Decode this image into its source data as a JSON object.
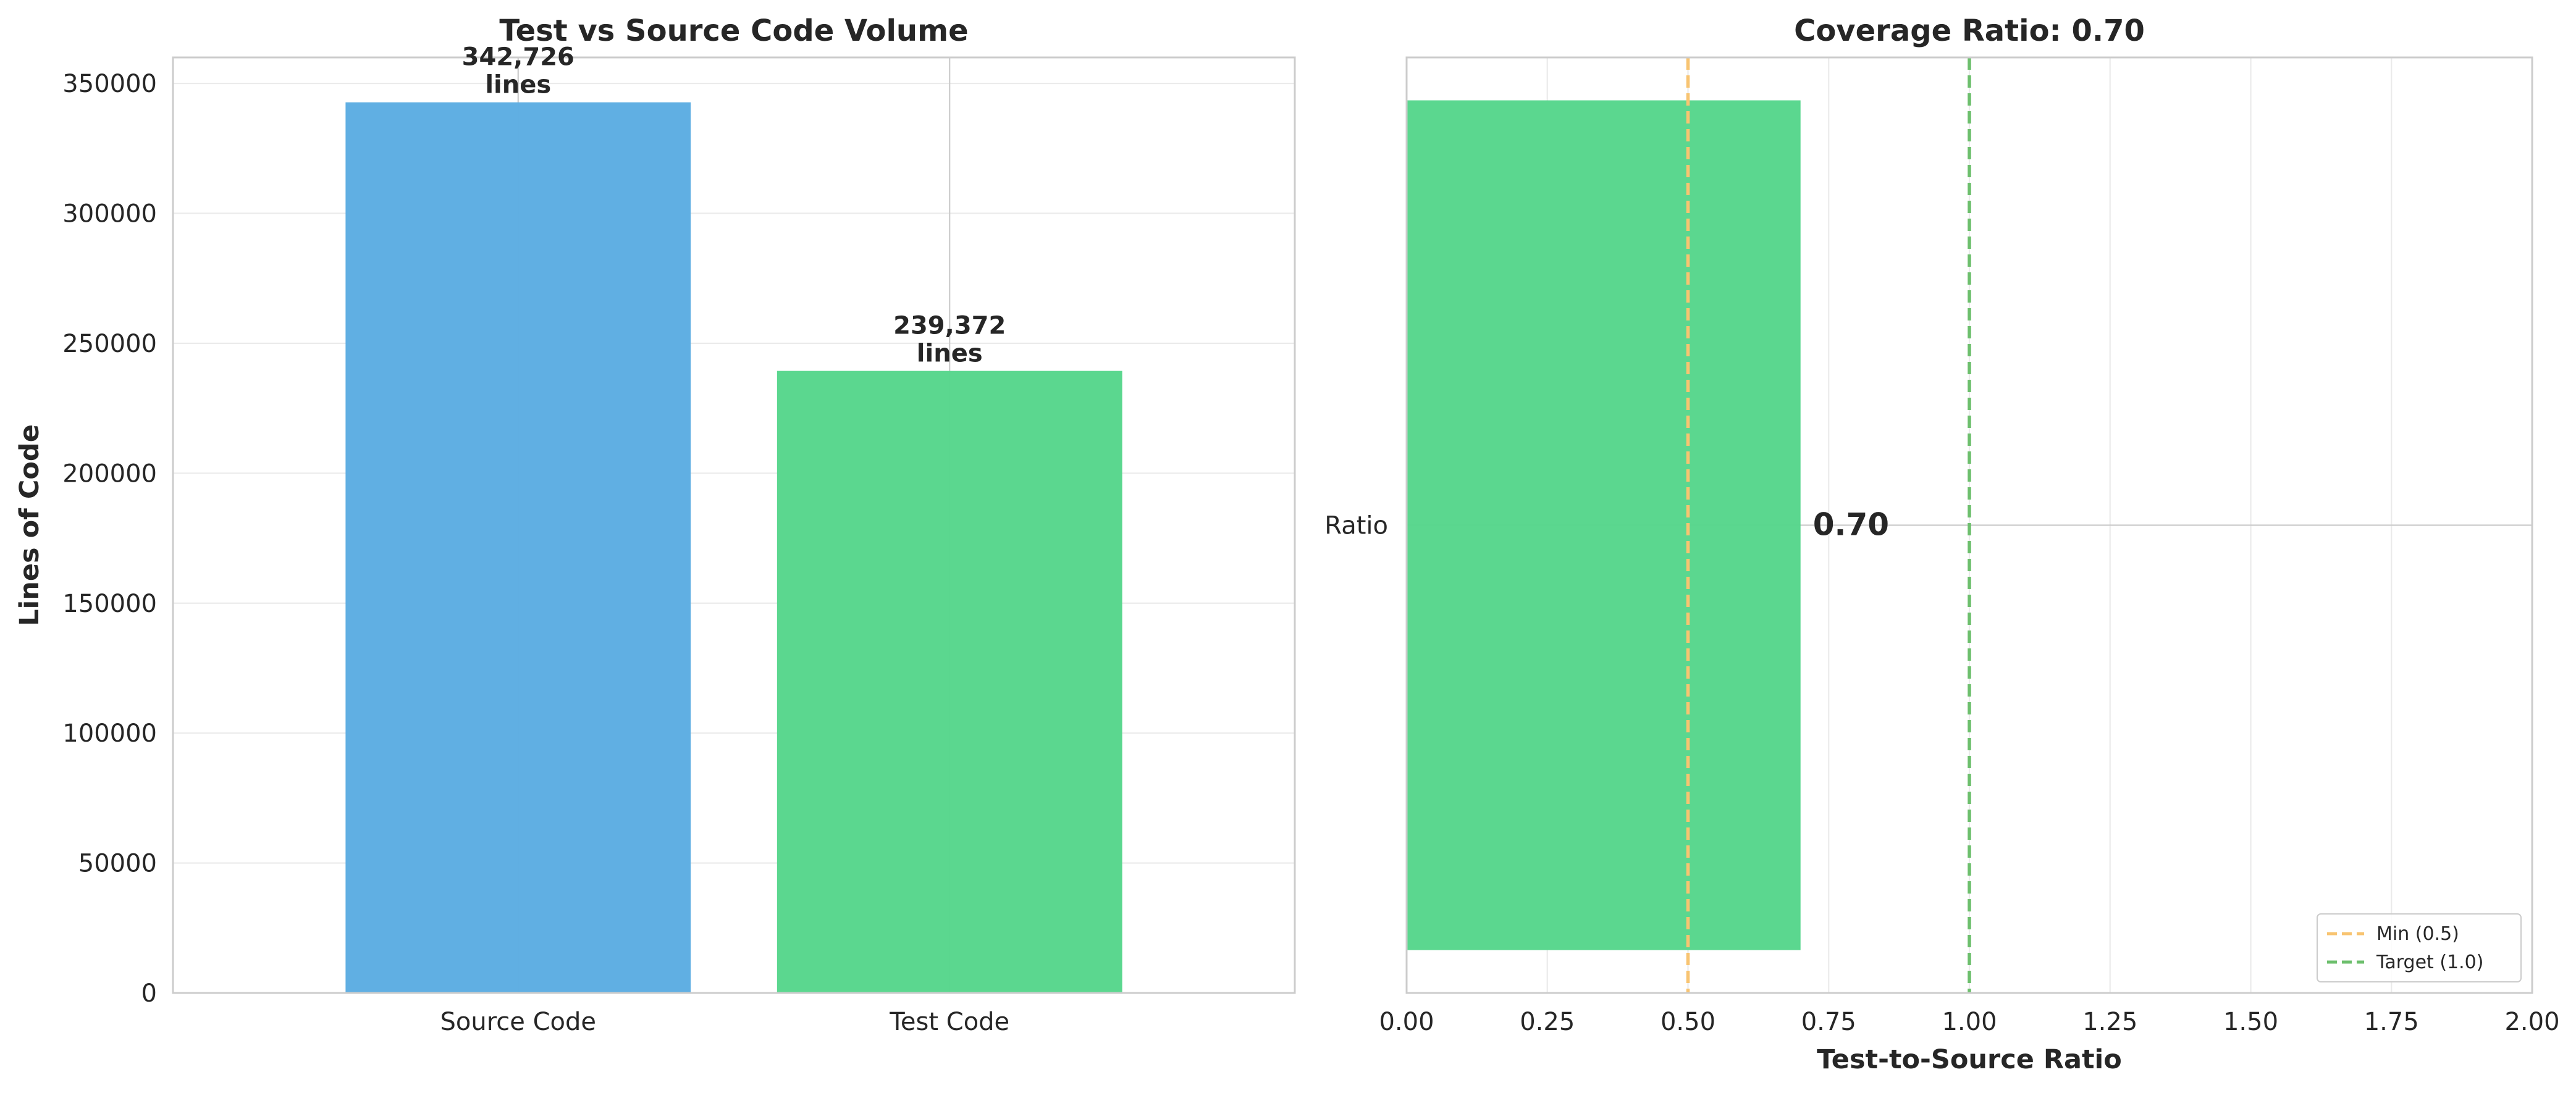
{
  "colors": {
    "source": "#5DADE2",
    "test": "#58D68D",
    "min_line": "#F8C471",
    "target_line": "#6DBF6D",
    "grid": "#EBEBEB",
    "spine": "#CCCCCC",
    "text": "#262626"
  },
  "chart_data": [
    {
      "type": "bar",
      "title": "Test vs Source Code Volume",
      "xlabel": "",
      "ylabel": "Lines of Code",
      "categories": [
        "Source Code",
        "Test Code"
      ],
      "values": [
        342726,
        239372
      ],
      "data_labels": [
        {
          "value": "342,726",
          "unit": "lines"
        },
        {
          "value": "239,372",
          "unit": "lines"
        }
      ],
      "ylim": [
        0,
        360000
      ],
      "yticks": [
        0,
        50000,
        100000,
        150000,
        200000,
        250000,
        300000,
        350000
      ],
      "ytick_labels": [
        "0",
        "50000",
        "100000",
        "150000",
        "200000",
        "250000",
        "300000",
        "350000"
      ],
      "grid": true
    },
    {
      "type": "bar",
      "orientation": "horizontal",
      "title": "Coverage Ratio: 0.70",
      "xlabel": "Test-to-Source Ratio",
      "ylabel": "",
      "categories": [
        "Ratio"
      ],
      "values": [
        0.7
      ],
      "data_label": "0.70",
      "xlim": [
        0,
        2.0
      ],
      "xticks": [
        0,
        0.25,
        0.5,
        0.75,
        1.0,
        1.25,
        1.5,
        1.75,
        2.0
      ],
      "xtick_labels": [
        "0.00",
        "0.25",
        "0.50",
        "0.75",
        "1.00",
        "1.25",
        "1.50",
        "1.75",
        "2.00"
      ],
      "grid": true,
      "reference_lines": [
        {
          "x": 0.5,
          "label": "Min (0.5)",
          "style": "dashed"
        },
        {
          "x": 1.0,
          "label": "Target (1.0)",
          "style": "dashed"
        }
      ],
      "legend_position": "bottom-right"
    }
  ]
}
